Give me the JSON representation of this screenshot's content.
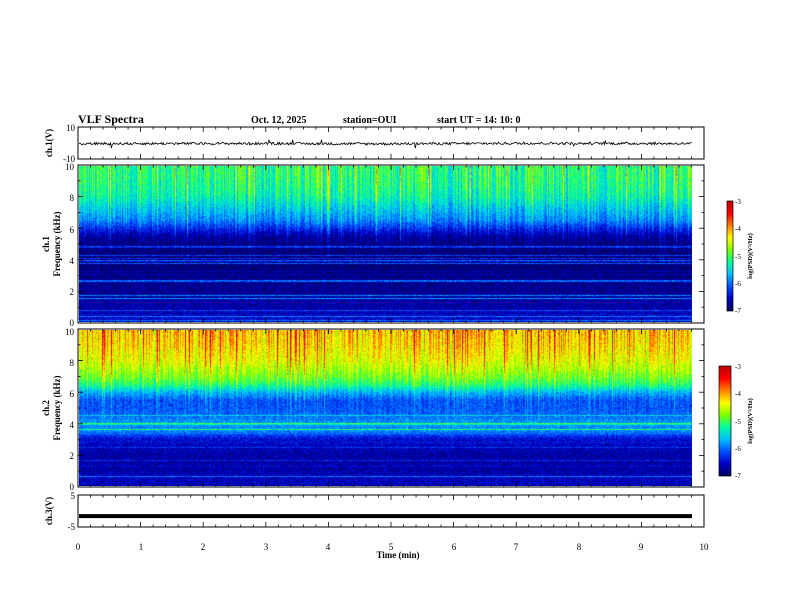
{
  "header": {
    "title": "VLF Spectra",
    "date": "Oct. 12, 2025",
    "station": "station=OUI",
    "start_time": "start  UT  =   14: 10: 0"
  },
  "chart_data": [
    {
      "type": "line",
      "panel": "ch1-waveform",
      "ylabel": "ch.1(V)",
      "ylim": [
        -10,
        10
      ],
      "yticks": [
        "10",
        "-10"
      ],
      "xlim": [
        0,
        10
      ],
      "series": [
        {
          "values": [
            -0.4,
            -0.3,
            -0.5,
            -0.2,
            -0.35
          ]
        }
      ]
    },
    {
      "type": "heatmap",
      "panel": "ch1-spectrogram",
      "ylabel_line1": "ch.1",
      "ylabel_line2": "Frequency (kHz)",
      "ylim": [
        0,
        10
      ],
      "yticks": [
        "0",
        "2",
        "4",
        "6",
        "8",
        "10"
      ],
      "xlim": [
        0,
        9.8
      ],
      "profile_freq": [
        0,
        0.5,
        1,
        1.5,
        2,
        2.5,
        3,
        3.5,
        4,
        4.5,
        5,
        5.5,
        6,
        6.5,
        7,
        7.5,
        8,
        8.5,
        9,
        9.5,
        10
      ],
      "profile_log_psd": [
        -6.5,
        -6.6,
        -6.7,
        -6.7,
        -6.8,
        -6.8,
        -6.85,
        -6.9,
        -6.9,
        -6.9,
        -6.85,
        -6.7,
        -6.3,
        -5.9,
        -5.7,
        -5.5,
        -5.3,
        -5.2,
        -5.15,
        -5.1,
        -5.1
      ],
      "colorbar": {
        "min": -7,
        "max": -3,
        "ticks": [
          "-3",
          "-4",
          "-5",
          "-6",
          "-7"
        ],
        "label": "log(PSD)(V²/Hz)"
      }
    },
    {
      "type": "heatmap",
      "panel": "ch2-spectrogram",
      "ylabel_line1": "ch.2",
      "ylabel_line2": "Frequency (kHz)",
      "ylim": [
        0,
        10
      ],
      "yticks": [
        "0",
        "2",
        "4",
        "6",
        "8",
        "10"
      ],
      "xlim": [
        0,
        9.8
      ],
      "profile_freq": [
        0,
        0.5,
        1,
        1.5,
        2,
        2.5,
        3,
        3.5,
        4,
        4.5,
        5,
        5.5,
        6,
        6.5,
        7,
        7.5,
        8,
        8.5,
        9,
        9.5,
        10
      ],
      "profile_log_psd": [
        -6.6,
        -6.6,
        -6.7,
        -6.7,
        -6.7,
        -6.6,
        -6.5,
        -5.9,
        -5.8,
        -6.0,
        -6.1,
        -6.1,
        -5.7,
        -5.1,
        -4.8,
        -4.6,
        -4.4,
        -4.3,
        -4.2,
        -4.15,
        -4.1
      ],
      "colorbar": {
        "min": -7,
        "max": -3,
        "ticks": [
          "-3",
          "-4",
          "-5",
          "-6",
          "-7"
        ],
        "label": "log(PSD)(V²/Hz)"
      }
    },
    {
      "type": "line",
      "panel": "ch3-waveform",
      "ylabel": "ch.3(V)",
      "ylim": [
        -5,
        5
      ],
      "yticks": [
        "5",
        "-5"
      ],
      "xlim": [
        0,
        10
      ],
      "xticks": [
        "0",
        "1",
        "2",
        "3",
        "4",
        "5",
        "6",
        "7",
        "8",
        "9",
        "10"
      ],
      "xlabel": "Time  (min)",
      "series": [
        {
          "values": [
            -1.6,
            -1.6,
            -1.6,
            -1.6,
            -1.6
          ]
        }
      ]
    }
  ],
  "colors": {
    "text": "#000000",
    "background": "#ffffff",
    "colormap": [
      "#000060",
      "#0000c8",
      "#0050ff",
      "#00c0ff",
      "#00ffa0",
      "#80ff00",
      "#ffff00",
      "#ff8000",
      "#ff0000",
      "#c00000"
    ]
  }
}
